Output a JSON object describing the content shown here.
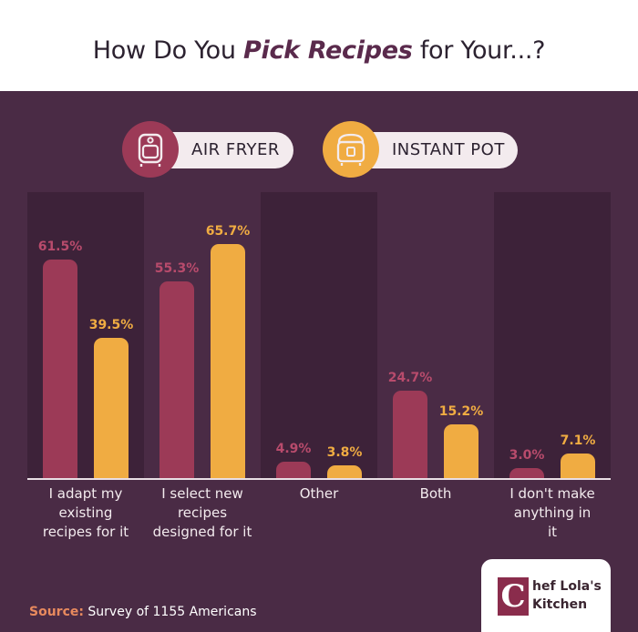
{
  "title": {
    "pre": "How Do You ",
    "emph": "Pick Recipes",
    "post": " for Your...?"
  },
  "legend": [
    {
      "label": "AIR FRYER",
      "color": "#9c3a57",
      "icon": "air-fryer-icon"
    },
    {
      "label": "INSTANT POT",
      "color": "#f0ac42",
      "icon": "instant-pot-icon"
    }
  ],
  "colors": {
    "panel": "#4a2b45",
    "column_dark": "#3d2239",
    "column_light": "#4a2b45",
    "air_fryer": "#9c3a57",
    "instant_pot": "#f0ac42"
  },
  "chart_data": {
    "type": "bar",
    "title": "How Do You Pick Recipes for Your...?",
    "categories": [
      "I adapt my existing recipes for it",
      "I select new recipes designed for it",
      "Other",
      "Both",
      "I don't make anything in it"
    ],
    "category_lines": [
      [
        "I adapt my",
        "existing",
        "recipes for it"
      ],
      [
        "I select new",
        "recipes",
        "designed for it"
      ],
      [
        "Other"
      ],
      [
        "Both"
      ],
      [
        "I don't make",
        "anything in",
        "it"
      ]
    ],
    "series": [
      {
        "name": "AIR FRYER",
        "values": [
          61.5,
          55.3,
          4.9,
          24.7,
          3.0
        ],
        "labels": [
          "61.5%",
          "55.3%",
          "4.9%",
          "24.7%",
          "3.0%"
        ]
      },
      {
        "name": "INSTANT POT",
        "values": [
          39.5,
          65.7,
          3.8,
          15.2,
          7.1
        ],
        "labels": [
          "39.5%",
          "65.7%",
          "3.8%",
          "15.2%",
          "7.1%"
        ]
      }
    ],
    "xlabel": "",
    "ylabel": "",
    "ylim": [
      0,
      100
    ],
    "grid": false,
    "legend_position": "top"
  },
  "source": {
    "label": "Source:",
    "text": " Survey of 1155 Americans"
  },
  "logo": {
    "letter": "C",
    "line1": "hef Lola's",
    "line2": "Kitchen"
  }
}
